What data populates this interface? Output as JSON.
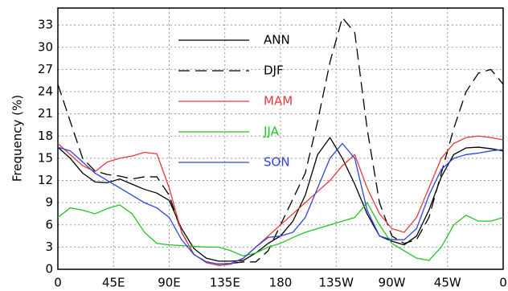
{
  "chart_data": {
    "type": "line",
    "ylabel": "Frequency (%)",
    "x": [
      0,
      10,
      20,
      30,
      40,
      50,
      60,
      70,
      80,
      90,
      100,
      110,
      120,
      130,
      140,
      150,
      160,
      170,
      180,
      190,
      200,
      210,
      220,
      230,
      240,
      250,
      260,
      270,
      280,
      290,
      300,
      310,
      320,
      330,
      340,
      350,
      360
    ],
    "series": [
      {
        "name": "ANN",
        "color": "#000000",
        "style": "solid",
        "values": [
          16.5,
          15,
          13,
          11.8,
          11.7,
          12.2,
          11.5,
          10.8,
          10.3,
          9.3,
          5.5,
          2.8,
          1.5,
          1.1,
          1.1,
          1.2,
          2.2,
          3.5,
          4.5,
          6.5,
          10,
          15.5,
          17.8,
          15,
          11.5,
          7.5,
          4.5,
          3.8,
          3.3,
          4.5,
          8,
          12.5,
          15.5,
          16.4,
          16.5,
          16.3,
          16
        ]
      },
      {
        "name": "DJF",
        "color": "#000000",
        "style": "dashed",
        "values": [
          25,
          20,
          15,
          13.3,
          12.8,
          12.6,
          12.2,
          12.5,
          12.5,
          10,
          5,
          2,
          1,
          0.7,
          0.8,
          1,
          1,
          2.5,
          6,
          9.5,
          13,
          20,
          28,
          34,
          32,
          19,
          9,
          4.5,
          3.5,
          4,
          7,
          13,
          19,
          24,
          26.5,
          27,
          25
        ]
      },
      {
        "name": "MAM",
        "color": "#e8393a",
        "style": "solid",
        "values": [
          17,
          15.5,
          14,
          13.2,
          14.5,
          15,
          15.3,
          15.8,
          15.6,
          11,
          5,
          2,
          0.9,
          0.5,
          0.7,
          1.5,
          3,
          4.5,
          6,
          7.5,
          9,
          10.5,
          12,
          14,
          15.5,
          11,
          7.5,
          5.5,
          5,
          7,
          11,
          15,
          17,
          17.8,
          18,
          17.8,
          17.5
        ]
      },
      {
        "name": "JJA",
        "color": "#22c422",
        "style": "solid",
        "values": [
          7,
          8.3,
          8,
          7.5,
          8.2,
          8.7,
          7.5,
          5,
          3.5,
          3.3,
          3.2,
          3.1,
          3,
          3,
          2.5,
          1.8,
          2.2,
          3,
          3.5,
          4.3,
          5,
          5.5,
          6,
          6.5,
          7,
          9,
          6,
          3.5,
          2.5,
          1.5,
          1.2,
          3,
          6,
          7.3,
          6.5,
          6.5,
          7
        ]
      },
      {
        "name": "SON",
        "color": "#2b45e0",
        "style": "solid",
        "values": [
          16.5,
          16,
          14.5,
          13,
          12,
          11,
          10,
          9,
          8.3,
          7,
          4,
          2,
          1,
          0.7,
          0.8,
          1.5,
          3,
          4.3,
          4.5,
          5,
          7,
          11,
          15,
          17,
          15,
          8,
          4.5,
          4,
          4,
          5.5,
          10,
          13.5,
          15,
          15.5,
          15.7,
          16,
          16.2
        ]
      }
    ],
    "xlim": [
      0,
      360
    ],
    "xticks": [
      0,
      {
        "value": 45,
        "label": "45E"
      },
      {
        "value": 90,
        "label": "90E"
      },
      {
        "value": 135,
        "label": "135E"
      },
      180,
      {
        "value": 225,
        "label": "135W"
      },
      {
        "value": 270,
        "label": "90W"
      },
      {
        "value": 315,
        "label": "45W"
      },
      {
        "value": 360,
        "label": "0"
      }
    ],
    "ylim": [
      0,
      35.3
    ],
    "yticks": [
      0,
      3,
      6,
      9,
      12,
      15,
      18,
      21,
      24,
      27,
      30,
      33
    ],
    "grid": true
  }
}
